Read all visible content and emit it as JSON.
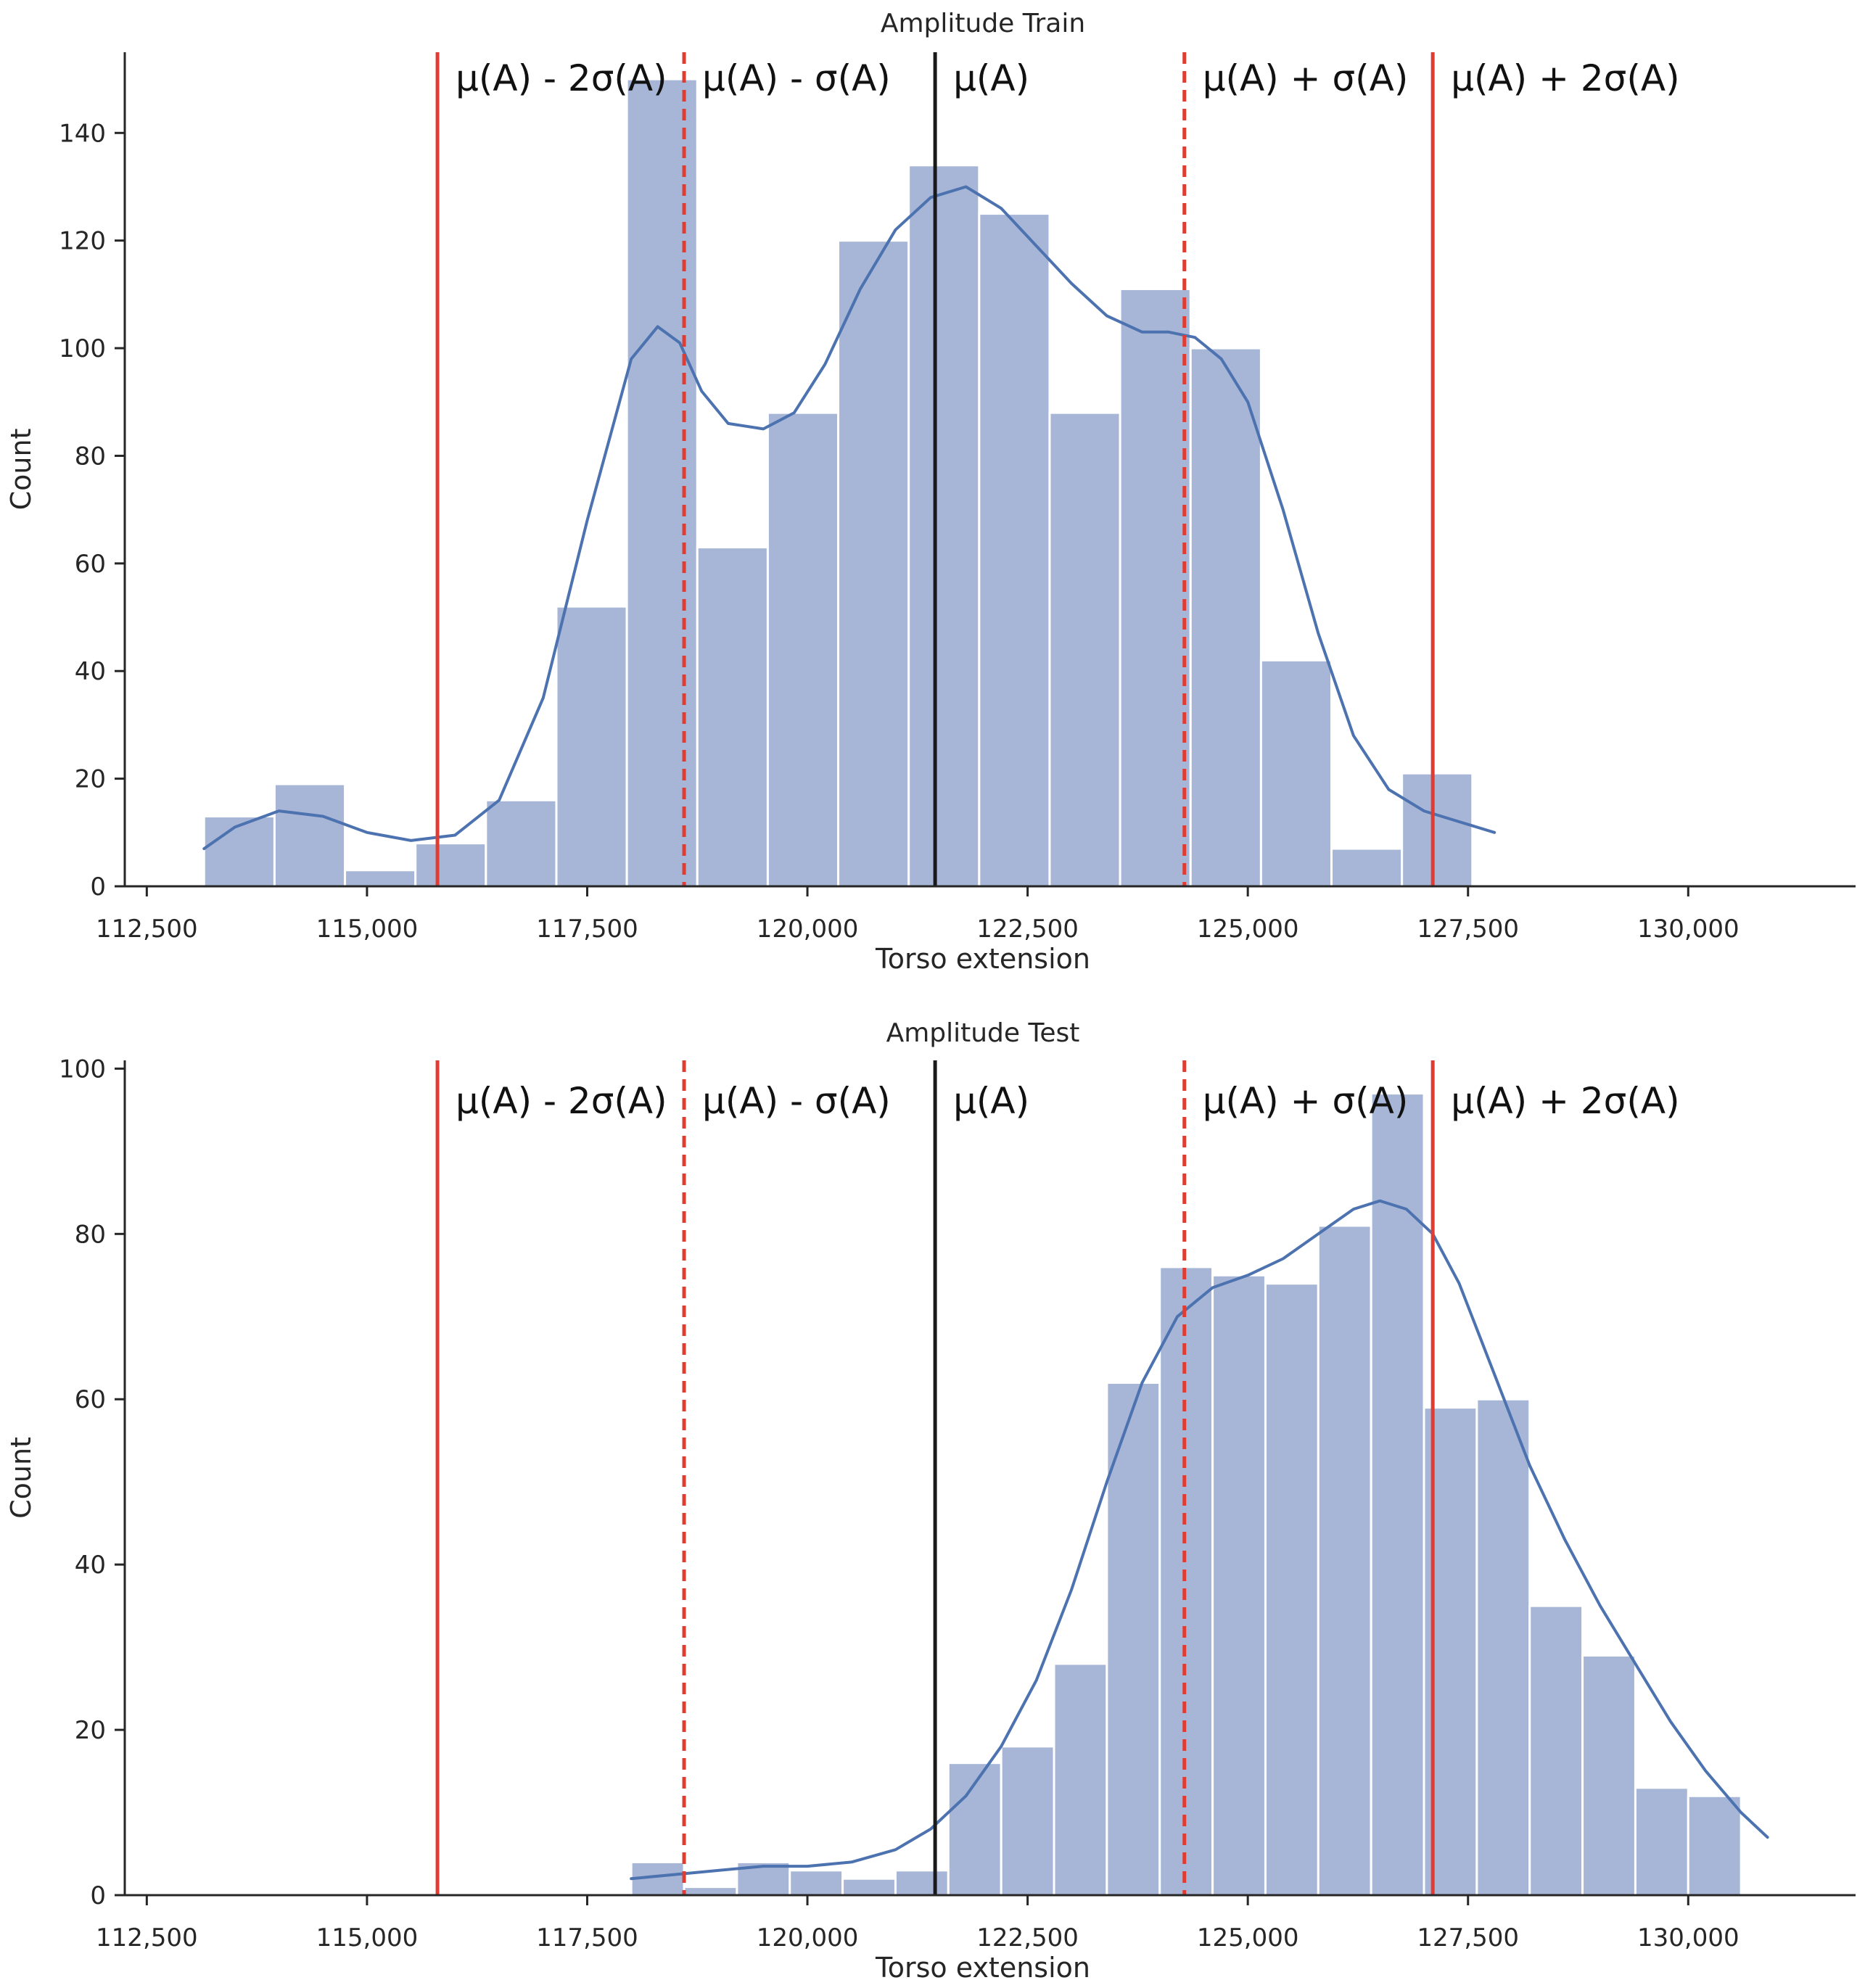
{
  "colors": {
    "bar_fill": "#a7b6d6",
    "bar_edge": "#ffffff",
    "kde_line": "#4c72b0",
    "sigma_line": "#e03c31",
    "mean_line": "#1a1a1a",
    "axis": "#262626",
    "text": "#262626"
  },
  "thresholds": {
    "mu": 121450,
    "minus_sigma": 118600,
    "plus_sigma": 124280,
    "minus_2sigma": 115800,
    "plus_2sigma": 127100
  },
  "chart_data": [
    {
      "type": "bar",
      "subtype": "histogram_with_kde",
      "title": "Amplitude Train",
      "xlabel": "Torso extension",
      "ylabel": "Count",
      "xlim": [
        112250,
        131900
      ],
      "ylim": [
        0,
        155
      ],
      "xticks": [
        112500,
        115000,
        117500,
        120000,
        122500,
        125000,
        127500,
        130000
      ],
      "xtick_labels": [
        "112,500",
        "115,000",
        "117,500",
        "120,000",
        "122,500",
        "125,000",
        "127,500",
        "130,000"
      ],
      "yticks": [
        0,
        20,
        40,
        60,
        80,
        100,
        120,
        140
      ],
      "ytick_labels": [
        "0",
        "20",
        "40",
        "60",
        "80",
        "100",
        "120",
        "140"
      ],
      "bin_edges": [
        113150,
        113950,
        114750,
        115550,
        116350,
        117150,
        117950,
        118750,
        119550,
        120350,
        121150,
        121950,
        122750,
        123550,
        124350,
        125150,
        125950,
        126750,
        127550,
        128350
      ],
      "counts": [
        13,
        19,
        3,
        8,
        16,
        52,
        150,
        63,
        88,
        120,
        134,
        125,
        88,
        111,
        100,
        42,
        7,
        21,
        0
      ],
      "kde": {
        "x": [
          113150,
          113500,
          114000,
          114500,
          115000,
          115500,
          116000,
          116500,
          117000,
          117500,
          118000,
          118300,
          118550,
          118800,
          119100,
          119500,
          119850,
          120200,
          120600,
          121000,
          121400,
          121800,
          122200,
          122600,
          123000,
          123400,
          123800,
          124100,
          124400,
          124700,
          125000,
          125400,
          125800,
          126200,
          126600,
          127000,
          127400,
          127800
        ],
        "y": [
          7,
          11,
          14,
          13,
          10,
          8.5,
          9.5,
          16,
          35,
          68,
          98,
          104,
          101,
          92,
          86,
          85,
          88,
          97,
          111,
          122,
          128,
          130,
          126,
          119,
          112,
          106,
          103,
          103,
          102,
          98,
          90,
          70,
          47,
          28,
          18,
          14,
          12,
          10
        ]
      },
      "vlines": [
        {
          "key": "minus_2sigma",
          "label": "μ(A) - 2σ(A)",
          "style": "solid",
          "color": "red"
        },
        {
          "key": "minus_sigma",
          "label": "μ(A) - σ(A)",
          "style": "dashed",
          "color": "red"
        },
        {
          "key": "mu",
          "label": "μ(A)",
          "style": "solid",
          "color": "black"
        },
        {
          "key": "plus_sigma",
          "label": "μ(A) + σ(A)",
          "style": "dashed",
          "color": "red"
        },
        {
          "key": "plus_2sigma",
          "label": "μ(A) + 2σ(A)",
          "style": "solid",
          "color": "red"
        }
      ]
    },
    {
      "type": "bar",
      "subtype": "histogram_with_kde",
      "title": "Amplitude Test",
      "xlabel": "Torso extension",
      "ylabel": "Count",
      "xlim": [
        112250,
        131900
      ],
      "ylim": [
        0,
        101
      ],
      "xticks": [
        112500,
        115000,
        117500,
        120000,
        122500,
        125000,
        127500,
        130000
      ],
      "xtick_labels": [
        "112,500",
        "115,000",
        "117,500",
        "120,000",
        "122,500",
        "125,000",
        "127,500",
        "130,000"
      ],
      "yticks": [
        0,
        20,
        40,
        60,
        80,
        100
      ],
      "ytick_labels": [
        "0",
        "20",
        "40",
        "60",
        "80",
        "100"
      ],
      "bin_edges": [
        118000,
        118600,
        119200,
        119800,
        120400,
        121000,
        121600,
        122200,
        122800,
        123400,
        124000,
        124600,
        125200,
        125800,
        126400,
        127000,
        127600,
        128200,
        128800,
        129400,
        130000,
        130600
      ],
      "counts": [
        4,
        1,
        4,
        3,
        2,
        3,
        16,
        18,
        28,
        62,
        76,
        75,
        74,
        81,
        97,
        59,
        60,
        35,
        29,
        13,
        12
      ],
      "kde": {
        "x": [
          118000,
          118500,
          119000,
          119500,
          120000,
          120500,
          121000,
          121400,
          121800,
          122200,
          122600,
          123000,
          123400,
          123800,
          124200,
          124600,
          125000,
          125400,
          125800,
          126200,
          126500,
          126800,
          127100,
          127400,
          127800,
          128200,
          128600,
          129000,
          129400,
          129800,
          130200,
          130600,
          130900
        ],
        "y": [
          2,
          2.5,
          3,
          3.5,
          3.5,
          4,
          5.5,
          8,
          12,
          18,
          26,
          37,
          50,
          62,
          70,
          73.5,
          75,
          77,
          80,
          83,
          84,
          83,
          80,
          74,
          63,
          52,
          43,
          35,
          28,
          21,
          15,
          10,
          7
        ]
      },
      "vlines": [
        {
          "key": "minus_2sigma",
          "label": "μ(A) - 2σ(A)",
          "style": "solid",
          "color": "red"
        },
        {
          "key": "minus_sigma",
          "label": "μ(A) - σ(A)",
          "style": "dashed",
          "color": "red"
        },
        {
          "key": "mu",
          "label": "μ(A)",
          "style": "solid",
          "color": "black"
        },
        {
          "key": "plus_sigma",
          "label": "μ(A) + σ(A)",
          "style": "dashed",
          "color": "red"
        },
        {
          "key": "plus_2sigma",
          "label": "μ(A) + 2σ(A)",
          "style": "solid",
          "color": "red"
        }
      ]
    }
  ]
}
